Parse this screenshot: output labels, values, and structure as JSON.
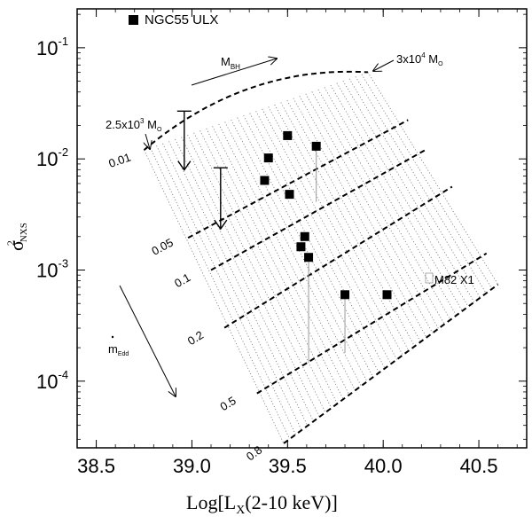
{
  "chart_data": {
    "type": "scatter",
    "x_axis": {
      "title_prefix": "Log[L",
      "title_sub": "X",
      "title_suffix": "(2-10 keV)]",
      "range": [
        38.4,
        40.75
      ],
      "ticks": [
        38.5,
        39.0,
        39.5,
        40.0,
        40.5
      ],
      "tick_labels": [
        "38.5",
        "39.0",
        "39.5",
        "40.0",
        "40.5"
      ]
    },
    "y_axis": {
      "title_symbol": "σ",
      "title_sup": "2",
      "title_sub": "NXS",
      "scale": "log",
      "range_log10": [
        -4.6,
        -0.65
      ],
      "ticks": [
        {
          "exp": -1,
          "base": "10",
          "sup": "-1"
        },
        {
          "exp": -2,
          "base": "10",
          "sup": "-2"
        },
        {
          "exp": -3,
          "base": "10",
          "sup": "-3"
        },
        {
          "exp": -4,
          "base": "10",
          "sup": "-4"
        }
      ]
    },
    "series": [
      {
        "name": "NGC55 ULX",
        "legend_label": "NGC55 ULX",
        "marker": "filled-square",
        "points": [
          {
            "x": 39.5,
            "y": 0.0162,
            "yerr_lo": null
          },
          {
            "x": 39.4,
            "y": 0.0102,
            "yerr_lo": null
          },
          {
            "x": 39.65,
            "y": 0.013,
            "yerr_lo": 0.0041
          },
          {
            "x": 39.38,
            "y": 0.0064,
            "yerr_lo": null
          },
          {
            "x": 39.51,
            "y": 0.0048,
            "yerr_lo": null
          },
          {
            "x": 39.59,
            "y": 0.002,
            "yerr_lo": null
          },
          {
            "x": 39.57,
            "y": 0.00162,
            "yerr_lo": null
          },
          {
            "x": 39.61,
            "y": 0.0013,
            "yerr_lo": 0.00015
          },
          {
            "x": 39.8,
            "y": 0.0006,
            "yerr_lo": 0.00018
          },
          {
            "x": 40.02,
            "y": 0.0006,
            "yerr_lo": null
          }
        ]
      }
    ],
    "curves": [
      {
        "label": "0.01",
        "x0": 38.75,
        "log_y0": -1.92,
        "x1": 39.92,
        "log_y1": -1.22,
        "rounded_top": true
      },
      {
        "label": "0.05",
        "x0": 38.98,
        "log_y0": -2.71,
        "x1": 40.13,
        "log_y1": -1.65
      },
      {
        "label": "0.1",
        "x0": 39.1,
        "log_y0": -3.0,
        "x1": 40.22,
        "log_y1": -1.92
      },
      {
        "label": "0.2",
        "x0": 39.17,
        "log_y0": -3.52,
        "x1": 40.36,
        "log_y1": -2.25
      },
      {
        "label": "0.5",
        "x0": 39.34,
        "log_y0": -4.11,
        "x1": 40.54,
        "log_y1": -2.85
      },
      {
        "label": "0.8",
        "x0": 39.48,
        "log_y0": -4.56,
        "x1": 40.6,
        "log_y1": -3.13
      }
    ],
    "vertical_arrows": [
      {
        "x": 38.96,
        "log_y_top": -1.57,
        "log_y_bottom": -2.1
      },
      {
        "x": 39.15,
        "log_y_top": -2.08,
        "log_y_bottom": -2.63
      }
    ],
    "annotations": {
      "legend": "NGC55 ULX",
      "mbh_main": "M",
      "mbh_sub": "BH",
      "mass_high_main": "3x10",
      "mass_high_sup": "4",
      "mass_high_unit": " M",
      "mass_high_sub": "O",
      "mass_low_main": "2.5x10",
      "mass_low_sup": "3",
      "mass_low_unit": " M",
      "mass_low_sub": "O",
      "mdot_main": "m",
      "mdot_sub": "Edd",
      "m82_label": "M82 X1"
    }
  }
}
